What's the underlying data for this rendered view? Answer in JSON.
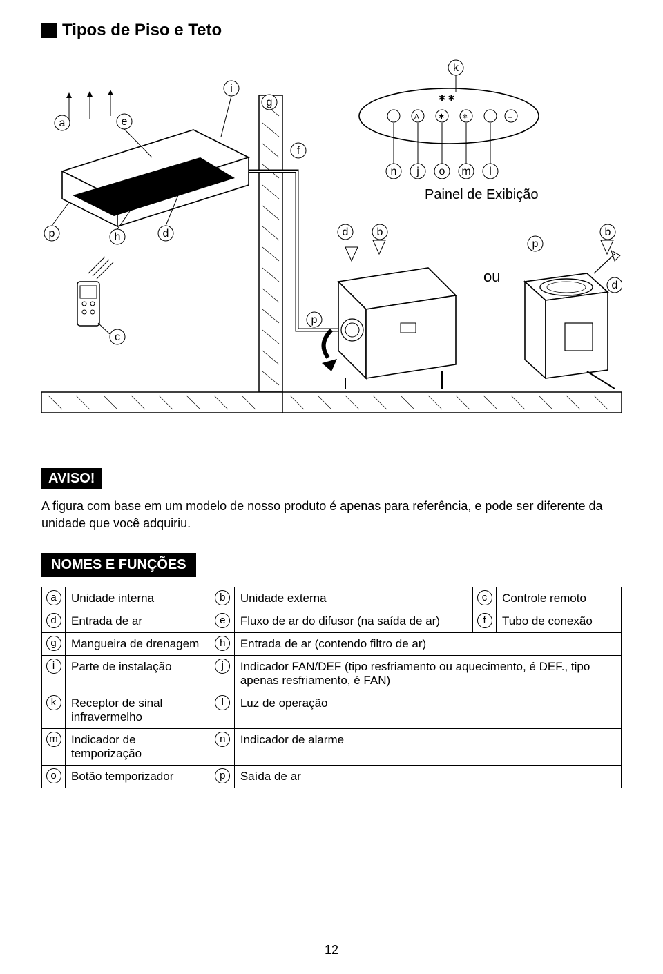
{
  "title": "Tipos de Piso e Teto",
  "diagram": {
    "labels": {
      "panel": "Painel de Exibição",
      "ou": "ou"
    },
    "callouts": [
      "a",
      "b",
      "c",
      "d",
      "e",
      "f",
      "g",
      "h",
      "i",
      "j",
      "k",
      "l",
      "m",
      "n",
      "o",
      "p"
    ],
    "colors": {
      "stroke": "#000000",
      "background": "#ffffff"
    }
  },
  "aviso": {
    "label": "AVISO!",
    "text": "A figura com base em um modelo de nosso produto é apenas para referência, e pode ser diferente da unidade que você adquiriu."
  },
  "section_header": "NOMES E FUNÇÕES",
  "parts": {
    "rows": [
      {
        "cells": [
          {
            "letter": "a",
            "text": "Unidade interna"
          },
          {
            "letter": "b",
            "text": "Unidade externa"
          },
          {
            "letter": "c",
            "text": "Controle remoto"
          }
        ]
      },
      {
        "cells": [
          {
            "letter": "d",
            "text": "Entrada de ar"
          },
          {
            "letter": "e",
            "text": "Fluxo de ar do difusor (na saída de ar)"
          },
          {
            "letter": "f",
            "text": "Tubo de conexão"
          }
        ]
      },
      {
        "cells": [
          {
            "letter": "g",
            "text": "Mangueira de drenagem"
          },
          {
            "letter": "h",
            "text": "Entrada de ar (contendo filtro de ar)",
            "span": 2
          }
        ]
      },
      {
        "cells": [
          {
            "letter": "i",
            "text": "Parte de instalação"
          },
          {
            "letter": "j",
            "text": "Indicador FAN/DEF (tipo resfriamento ou aquecimento, é DEF., tipo apenas resfriamento, é FAN)",
            "span": 2
          }
        ]
      },
      {
        "cells": [
          {
            "letter": "k",
            "text": "Receptor de sinal infravermelho"
          },
          {
            "letter": "l",
            "text": "Luz de operação",
            "span": 2
          }
        ]
      },
      {
        "cells": [
          {
            "letter": "m",
            "text": "Indicador de temporização"
          },
          {
            "letter": "n",
            "text": "Indicador de alarme",
            "span": 2
          }
        ]
      },
      {
        "cells": [
          {
            "letter": "o",
            "text": "Botão temporizador"
          },
          {
            "letter": "p",
            "text": "Saída de ar",
            "span": 2
          }
        ]
      }
    ]
  },
  "page_number": "12"
}
